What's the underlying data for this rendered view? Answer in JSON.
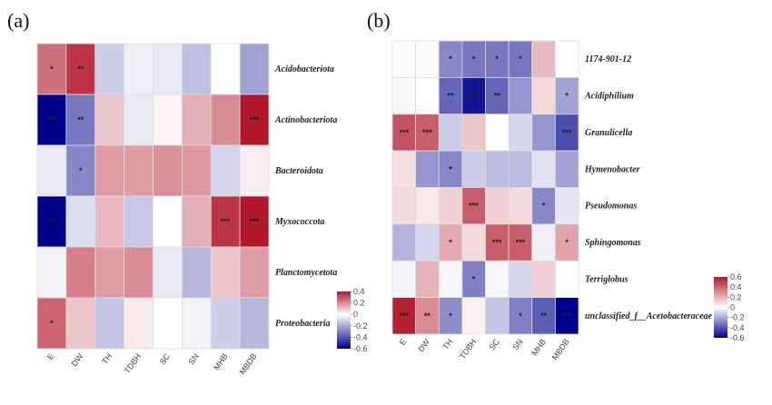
{
  "chart_data": [
    {
      "type": "heatmap",
      "panel_label": "(a)",
      "title": "",
      "columns": [
        "E",
        "DW",
        "TH",
        "TDBH",
        "SC",
        "SN",
        "MHB",
        "MBDB"
      ],
      "rows": [
        "Acidobacteriota",
        "Actinobacteriota",
        "Bacteroidota",
        "Myxococcota",
        "Planctomycetota",
        "Proteobacteria"
      ],
      "values": [
        [
          0.25,
          0.35,
          -0.12,
          -0.04,
          -0.05,
          -0.15,
          0.0,
          -0.22
        ],
        [
          -0.6,
          -0.32,
          0.1,
          -0.05,
          0.02,
          0.14,
          0.2,
          0.42
        ],
        [
          -0.05,
          -0.28,
          0.17,
          0.17,
          0.19,
          0.18,
          -0.1,
          0.03
        ],
        [
          -0.62,
          -0.08,
          0.12,
          -0.13,
          0.0,
          0.14,
          0.35,
          0.48
        ],
        [
          -0.03,
          0.22,
          0.17,
          0.2,
          -0.05,
          -0.17,
          0.1,
          0.17
        ],
        [
          0.27,
          0.1,
          -0.14,
          0.04,
          0.0,
          -0.03,
          -0.12,
          -0.17
        ]
      ],
      "significance": [
        [
          "*",
          "**",
          "",
          "",
          "",
          "",
          "",
          ""
        ],
        [
          "***",
          "**",
          "",
          "",
          "",
          "",
          "",
          "***"
        ],
        [
          "",
          "*",
          "",
          "",
          "",
          "",
          "",
          ""
        ],
        [
          "***",
          "",
          "",
          "",
          "",
          "",
          "***",
          "***"
        ],
        [
          "",
          "",
          "",
          "",
          "",
          "",
          "",
          ""
        ],
        [
          "*",
          "",
          "",
          "",
          "",
          "",
          "",
          ""
        ]
      ],
      "color_scale": {
        "min": -0.6,
        "max": 0.4,
        "low_color": "#00008b",
        "mid_color": "#ffffff",
        "high_color": "#b2182b"
      },
      "legend": {
        "ticks": [
          0.4,
          0.2,
          0,
          -0.2,
          -0.4,
          -0.6
        ],
        "tick_labels": [
          "0.4",
          "0.2",
          "0",
          "-0.2",
          "-0.4",
          "-0.6"
        ],
        "position": "bottom-right"
      }
    },
    {
      "type": "heatmap",
      "panel_label": "(b)",
      "title": "",
      "columns": [
        "E",
        "DW",
        "TH",
        "TDBH",
        "SC",
        "SN",
        "MHB",
        "MBDB"
      ],
      "rows": [
        "1174-901-12",
        "Acidiphilium",
        "Granulicella",
        "Hymenobacter",
        "Pseudomonas",
        "Sphingomonas",
        "Terriglobus",
        "unclassified_f__Acetobacteraceae"
      ],
      "values": [
        [
          0.01,
          0.01,
          -0.28,
          -0.32,
          -0.32,
          -0.32,
          0.18,
          0.0
        ],
        [
          0.02,
          0.0,
          -0.36,
          -0.55,
          -0.36,
          -0.25,
          0.1,
          -0.22
        ],
        [
          0.45,
          0.42,
          -0.12,
          0.15,
          0.0,
          -0.1,
          -0.25,
          -0.42
        ],
        [
          0.08,
          -0.25,
          -0.28,
          -0.12,
          -0.16,
          -0.16,
          -0.07,
          -0.22
        ],
        [
          0.1,
          0.06,
          0.12,
          0.42,
          0.12,
          0.1,
          -0.28,
          -0.06
        ],
        [
          -0.18,
          -0.1,
          0.22,
          0.1,
          0.42,
          0.42,
          -0.04,
          0.24
        ],
        [
          -0.03,
          0.2,
          -0.02,
          -0.3,
          -0.02,
          -0.1,
          0.12,
          0.0
        ],
        [
          0.58,
          0.3,
          -0.27,
          0.04,
          -0.14,
          -0.3,
          -0.38,
          -0.62
        ]
      ],
      "significance": [
        [
          "",
          "",
          "*",
          "*",
          "*",
          "*",
          "",
          ""
        ],
        [
          "",
          "",
          "**",
          "***",
          "**",
          "",
          "",
          "*"
        ],
        [
          "***",
          "***",
          "",
          "",
          "",
          "",
          "",
          "***"
        ],
        [
          "",
          "",
          "*",
          "",
          "",
          "",
          "",
          ""
        ],
        [
          "",
          "",
          "",
          "***",
          "",
          "",
          "*",
          ""
        ],
        [
          "",
          "",
          "*",
          "",
          "***",
          "***",
          "",
          "*"
        ],
        [
          "",
          "",
          "",
          "*",
          "",
          "",
          "",
          ""
        ],
        [
          "***",
          "**",
          "*",
          "",
          "",
          "*",
          "**",
          "***"
        ]
      ],
      "color_scale": {
        "min": -0.6,
        "max": 0.6,
        "low_color": "#00008b",
        "mid_color": "#ffffff",
        "high_color": "#b2182b"
      },
      "legend": {
        "ticks": [
          0.6,
          0.4,
          0.2,
          0,
          -0.2,
          -0.4,
          -0.6
        ],
        "tick_labels": [
          "0.6",
          "0.4",
          "0.2",
          "0",
          "-0.2",
          "-0.4",
          "-0.6"
        ],
        "position": "bottom-right"
      }
    }
  ]
}
